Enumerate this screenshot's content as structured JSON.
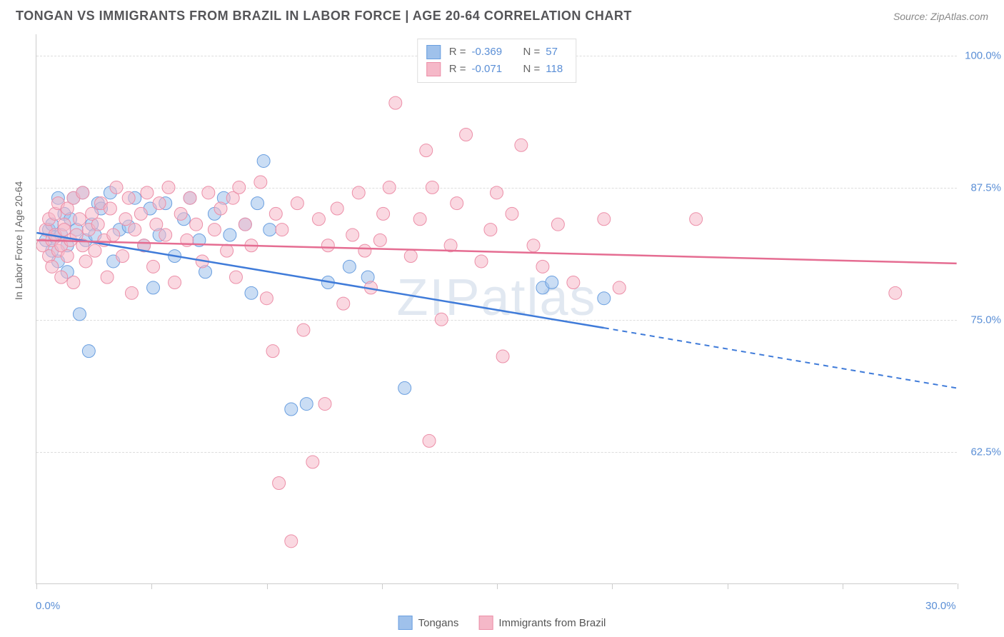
{
  "header": {
    "title": "TONGAN VS IMMIGRANTS FROM BRAZIL IN LABOR FORCE | AGE 20-64 CORRELATION CHART",
    "source": "Source: ZipAtlas.com"
  },
  "chart": {
    "type": "scatter",
    "ylabel": "In Labor Force | Age 20-64",
    "watermark": "ZIPatlas",
    "xlim": [
      0,
      30
    ],
    "ylim": [
      50,
      102
    ],
    "yticks": [
      {
        "val": 62.5,
        "label": "62.5%"
      },
      {
        "val": 75.0,
        "label": "75.0%"
      },
      {
        "val": 87.5,
        "label": "87.5%"
      },
      {
        "val": 100.0,
        "label": "100.0%"
      }
    ],
    "xticks": [
      0,
      3.75,
      7.5,
      11.25,
      15,
      18.75,
      22.5,
      26.25,
      30
    ],
    "xaxis_labels": [
      {
        "val": 0,
        "label": "0.0%"
      },
      {
        "val": 30,
        "label": "30.0%"
      }
    ],
    "background_color": "#ffffff",
    "grid_color": "#dddddd",
    "marker_radius": 9,
    "marker_opacity": 0.55,
    "series": [
      {
        "name": "Tongans",
        "color_fill": "#9fc1eb",
        "color_stroke": "#6a9fe0",
        "line_color": "#3f7bd9",
        "R": "-0.369",
        "N": "57",
        "trend": {
          "x1": 0,
          "y1": 83.2,
          "x2": 18.5,
          "y2": 74.2,
          "x_extrap": 30,
          "y_extrap": 68.5
        },
        "points": [
          [
            0.3,
            82.5
          ],
          [
            0.4,
            83.5
          ],
          [
            0.5,
            81.5
          ],
          [
            0.5,
            84.0
          ],
          [
            0.6,
            82.8
          ],
          [
            0.7,
            86.5
          ],
          [
            0.7,
            80.5
          ],
          [
            0.8,
            83.0
          ],
          [
            0.9,
            85.0
          ],
          [
            1.0,
            82.0
          ],
          [
            1.0,
            79.5
          ],
          [
            1.1,
            84.5
          ],
          [
            1.2,
            86.5
          ],
          [
            1.3,
            83.5
          ],
          [
            1.4,
            75.5
          ],
          [
            1.5,
            87.0
          ],
          [
            1.6,
            82.5
          ],
          [
            1.7,
            72.0
          ],
          [
            1.8,
            84.0
          ],
          [
            1.9,
            83.0
          ],
          [
            2.0,
            86.0
          ],
          [
            2.1,
            85.5
          ],
          [
            2.4,
            87.0
          ],
          [
            2.5,
            80.5
          ],
          [
            2.7,
            83.5
          ],
          [
            3.0,
            83.8
          ],
          [
            3.2,
            86.5
          ],
          [
            3.5,
            82.0
          ],
          [
            3.7,
            85.5
          ],
          [
            3.8,
            78.0
          ],
          [
            4.0,
            83.0
          ],
          [
            4.2,
            86.0
          ],
          [
            4.5,
            81.0
          ],
          [
            4.8,
            84.5
          ],
          [
            5.0,
            86.5
          ],
          [
            5.3,
            82.5
          ],
          [
            5.5,
            79.5
          ],
          [
            5.8,
            85.0
          ],
          [
            6.1,
            86.5
          ],
          [
            6.3,
            83.0
          ],
          [
            6.8,
            84.0
          ],
          [
            7.0,
            77.5
          ],
          [
            7.2,
            86.0
          ],
          [
            7.4,
            90.0
          ],
          [
            7.6,
            83.5
          ],
          [
            8.3,
            66.5
          ],
          [
            8.8,
            67.0
          ],
          [
            9.5,
            78.5
          ],
          [
            10.2,
            80.0
          ],
          [
            10.8,
            79.0
          ],
          [
            12.0,
            68.5
          ],
          [
            16.5,
            78.0
          ],
          [
            16.8,
            78.5
          ],
          [
            18.5,
            77.0
          ]
        ]
      },
      {
        "name": "Immigrants from Brazil",
        "color_fill": "#f5b8c8",
        "color_stroke": "#ec8fa8",
        "line_color": "#e56d92",
        "R": "-0.071",
        "N": "118",
        "trend": {
          "x1": 0,
          "y1": 82.5,
          "x2": 30,
          "y2": 80.3,
          "x_extrap": 30,
          "y_extrap": 80.3
        },
        "points": [
          [
            0.2,
            82.0
          ],
          [
            0.3,
            83.5
          ],
          [
            0.4,
            81.0
          ],
          [
            0.4,
            84.5
          ],
          [
            0.5,
            82.5
          ],
          [
            0.5,
            80.0
          ],
          [
            0.6,
            85.0
          ],
          [
            0.6,
            83.0
          ],
          [
            0.7,
            81.5
          ],
          [
            0.7,
            86.0
          ],
          [
            0.8,
            82.0
          ],
          [
            0.8,
            79.0
          ],
          [
            0.9,
            84.0
          ],
          [
            0.9,
            83.5
          ],
          [
            1.0,
            85.5
          ],
          [
            1.0,
            81.0
          ],
          [
            1.1,
            82.5
          ],
          [
            1.2,
            86.5
          ],
          [
            1.2,
            78.5
          ],
          [
            1.3,
            83.0
          ],
          [
            1.4,
            84.5
          ],
          [
            1.5,
            82.0
          ],
          [
            1.5,
            87.0
          ],
          [
            1.6,
            80.5
          ],
          [
            1.7,
            83.5
          ],
          [
            1.8,
            85.0
          ],
          [
            1.9,
            81.5
          ],
          [
            2.0,
            84.0
          ],
          [
            2.1,
            86.0
          ],
          [
            2.2,
            82.5
          ],
          [
            2.3,
            79.0
          ],
          [
            2.4,
            85.5
          ],
          [
            2.5,
            83.0
          ],
          [
            2.6,
            87.5
          ],
          [
            2.8,
            81.0
          ],
          [
            2.9,
            84.5
          ],
          [
            3.0,
            86.5
          ],
          [
            3.1,
            77.5
          ],
          [
            3.2,
            83.5
          ],
          [
            3.4,
            85.0
          ],
          [
            3.5,
            82.0
          ],
          [
            3.6,
            87.0
          ],
          [
            3.8,
            80.0
          ],
          [
            3.9,
            84.0
          ],
          [
            4.0,
            86.0
          ],
          [
            4.2,
            83.0
          ],
          [
            4.3,
            87.5
          ],
          [
            4.5,
            78.5
          ],
          [
            4.7,
            85.0
          ],
          [
            4.9,
            82.5
          ],
          [
            5.0,
            86.5
          ],
          [
            5.2,
            84.0
          ],
          [
            5.4,
            80.5
          ],
          [
            5.6,
            87.0
          ],
          [
            5.8,
            83.5
          ],
          [
            6.0,
            85.5
          ],
          [
            6.2,
            81.5
          ],
          [
            6.4,
            86.5
          ],
          [
            6.5,
            79.0
          ],
          [
            6.6,
            87.5
          ],
          [
            6.8,
            84.0
          ],
          [
            7.0,
            82.0
          ],
          [
            7.3,
            88.0
          ],
          [
            7.5,
            77.0
          ],
          [
            7.7,
            72.0
          ],
          [
            7.8,
            85.0
          ],
          [
            7.9,
            59.5
          ],
          [
            8.0,
            83.5
          ],
          [
            8.3,
            54.0
          ],
          [
            8.5,
            86.0
          ],
          [
            8.7,
            74.0
          ],
          [
            9.0,
            61.5
          ],
          [
            9.2,
            84.5
          ],
          [
            9.4,
            67.0
          ],
          [
            9.5,
            82.0
          ],
          [
            9.8,
            85.5
          ],
          [
            10.0,
            76.5
          ],
          [
            10.3,
            83.0
          ],
          [
            10.5,
            87.0
          ],
          [
            10.7,
            81.5
          ],
          [
            10.9,
            78.0
          ],
          [
            11.2,
            82.5
          ],
          [
            11.3,
            85.0
          ],
          [
            11.5,
            87.5
          ],
          [
            11.7,
            95.5
          ],
          [
            12.2,
            81.0
          ],
          [
            12.5,
            84.5
          ],
          [
            12.7,
            91.0
          ],
          [
            12.8,
            63.5
          ],
          [
            12.9,
            87.5
          ],
          [
            13.2,
            75.0
          ],
          [
            13.5,
            82.0
          ],
          [
            13.7,
            86.0
          ],
          [
            14.0,
            92.5
          ],
          [
            14.5,
            80.5
          ],
          [
            14.8,
            83.5
          ],
          [
            15.0,
            87.0
          ],
          [
            15.2,
            71.5
          ],
          [
            15.5,
            85.0
          ],
          [
            15.8,
            91.5
          ],
          [
            16.2,
            82.0
          ],
          [
            16.5,
            80.0
          ],
          [
            17.0,
            84.0
          ],
          [
            17.5,
            78.5
          ],
          [
            18.5,
            84.5
          ],
          [
            19.0,
            78.0
          ],
          [
            21.5,
            84.5
          ],
          [
            28.0,
            77.5
          ]
        ]
      }
    ],
    "legend_bottom": [
      {
        "label": "Tongans",
        "fill": "#9fc1eb",
        "stroke": "#6a9fe0"
      },
      {
        "label": "Immigrants from Brazil",
        "fill": "#f5b8c8",
        "stroke": "#ec8fa8"
      }
    ]
  }
}
